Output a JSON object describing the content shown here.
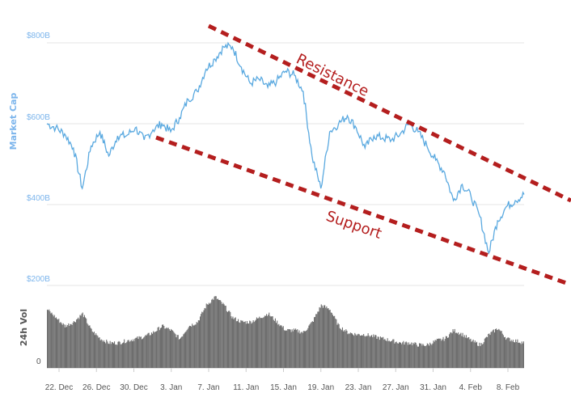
{
  "chart_data": {
    "type": "line",
    "title": "",
    "ylabel": "Market Cap",
    "y2label": "24h Vol",
    "ylim": [
      200,
      800
    ],
    "yticks": [
      "$800B",
      "$600B",
      "$400B",
      "$200B"
    ],
    "vol_zero_label": "0",
    "xtick_labels": [
      "22. Dec",
      "26. Dec",
      "30. Dec",
      "3. Jan",
      "7. Jan",
      "11. Jan",
      "15. Jan",
      "19. Jan",
      "23. Jan",
      "27. Jan",
      "31. Jan",
      "4. Feb",
      "8. Feb"
    ],
    "series": [
      {
        "name": "Market Cap",
        "color": "#5aa9e0",
        "unit": "$B",
        "points": [
          [
            "18. Dec",
            600
          ],
          [
            "19. Dec",
            590
          ],
          [
            "20. Dec",
            575
          ],
          [
            "21. Dec",
            540
          ],
          [
            "22. Dec",
            440
          ],
          [
            "23. Dec",
            545
          ],
          [
            "24. Dec",
            580
          ],
          [
            "25. Dec",
            520
          ],
          [
            "26. Dec",
            570
          ],
          [
            "27. Dec",
            570
          ],
          [
            "28. Dec",
            590
          ],
          [
            "29. Dec",
            560
          ],
          [
            "30. Dec",
            585
          ],
          [
            "31. Dec",
            600
          ],
          [
            "1. Jan",
            580
          ],
          [
            "2. Jan",
            615
          ],
          [
            "3. Jan",
            660
          ],
          [
            "4. Jan",
            680
          ],
          [
            "5. Jan",
            735
          ],
          [
            "6. Jan",
            760
          ],
          [
            "7. Jan",
            790
          ],
          [
            "8. Jan",
            790
          ],
          [
            "9. Jan",
            740
          ],
          [
            "10. Jan",
            700
          ],
          [
            "11. Jan",
            710
          ],
          [
            "12. Jan",
            690
          ],
          [
            "13. Jan",
            705
          ],
          [
            "14. Jan",
            730
          ],
          [
            "15. Jan",
            720
          ],
          [
            "16. Jan",
            680
          ],
          [
            "17. Jan",
            520
          ],
          [
            "18. Jan",
            440
          ],
          [
            "19. Jan",
            580
          ],
          [
            "20. Jan",
            600
          ],
          [
            "21. Jan",
            620
          ],
          [
            "22. Jan",
            590
          ],
          [
            "23. Jan",
            540
          ],
          [
            "24. Jan",
            570
          ],
          [
            "25. Jan",
            565
          ],
          [
            "26. Jan",
            560
          ],
          [
            "27. Jan",
            575
          ],
          [
            "28. Jan",
            600
          ],
          [
            "29. Jan",
            580
          ],
          [
            "30. Jan",
            545
          ],
          [
            "31. Jan",
            510
          ],
          [
            "1. Feb",
            480
          ],
          [
            "2. Feb",
            410
          ],
          [
            "3. Feb",
            450
          ],
          [
            "4. Feb",
            420
          ],
          [
            "5. Feb",
            370
          ],
          [
            "6. Feb",
            280
          ],
          [
            "7. Feb",
            360
          ],
          [
            "8. Feb",
            395
          ],
          [
            "9. Feb",
            410
          ],
          [
            "9.5 Feb",
            425
          ]
        ]
      },
      {
        "name": "24h Vol",
        "color": "#666666",
        "unit": "$B",
        "points": [
          [
            "18. Dec",
            14
          ],
          [
            "19. Dec",
            12
          ],
          [
            "20. Dec",
            10
          ],
          [
            "21. Dec",
            11
          ],
          [
            "22. Dec",
            13
          ],
          [
            "23. Dec",
            9
          ],
          [
            "24. Dec",
            7
          ],
          [
            "25. Dec",
            6
          ],
          [
            "26. Dec",
            6
          ],
          [
            "27. Dec",
            6.5
          ],
          [
            "28. Dec",
            7
          ],
          [
            "29. Dec",
            7.5
          ],
          [
            "30. Dec",
            8.5
          ],
          [
            "31. Dec",
            10
          ],
          [
            "1. Jan",
            9
          ],
          [
            "2. Jan",
            7
          ],
          [
            "3. Jan",
            10
          ],
          [
            "4. Jan",
            11
          ],
          [
            "5. Jan",
            15
          ],
          [
            "6. Jan",
            17
          ],
          [
            "7. Jan",
            15
          ],
          [
            "8. Jan",
            12
          ],
          [
            "9. Jan",
            11
          ],
          [
            "10. Jan",
            11
          ],
          [
            "11. Jan",
            12
          ],
          [
            "12. Jan",
            13
          ],
          [
            "13. Jan",
            11
          ],
          [
            "14. Jan",
            9
          ],
          [
            "15. Jan",
            9
          ],
          [
            "16. Jan",
            8.5
          ],
          [
            "17. Jan",
            11
          ],
          [
            "18. Jan",
            15
          ],
          [
            "19. Jan",
            14
          ],
          [
            "20. Jan",
            10
          ],
          [
            "21. Jan",
            8.5
          ],
          [
            "22. Jan",
            8
          ],
          [
            "23. Jan",
            8
          ],
          [
            "24. Jan",
            7.5
          ],
          [
            "25. Jan",
            7
          ],
          [
            "26. Jan",
            6.5
          ],
          [
            "27. Jan",
            6
          ],
          [
            "28. Jan",
            6
          ],
          [
            "29. Jan",
            5.5
          ],
          [
            "30. Jan",
            5.5
          ],
          [
            "31. Jan",
            6.5
          ],
          [
            "1. Feb",
            7
          ],
          [
            "2. Feb",
            9
          ],
          [
            "3. Feb",
            8
          ],
          [
            "4. Feb",
            6.5
          ],
          [
            "5. Feb",
            5.5
          ],
          [
            "6. Feb",
            8
          ],
          [
            "7. Feb",
            9.5
          ],
          [
            "8. Feb",
            7
          ],
          [
            "9. Feb",
            6.5
          ],
          [
            "9.5 Feb",
            6
          ]
        ]
      }
    ],
    "annotations": [
      {
        "text": "Resistance",
        "color": "#b41e1e"
      },
      {
        "text": "Support",
        "color": "#b41e1e"
      }
    ],
    "grid": true
  }
}
